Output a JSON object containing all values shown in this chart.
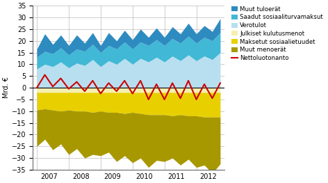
{
  "ylabel": "Mrd. €",
  "ylim": [
    -35,
    35
  ],
  "yticks": [
    -35,
    -30,
    -25,
    -20,
    -15,
    -10,
    -5,
    0,
    5,
    10,
    15,
    20,
    25,
    30,
    35
  ],
  "x_labels": [
    "2007",
    "2008",
    "2009",
    "2010",
    "2011",
    "2012"
  ],
  "colors_positive": [
    "#2e8bc0",
    "#41b8d5",
    "#b8dff0"
  ],
  "colors_negative": [
    "#f5f0b0",
    "#e8d000",
    "#a89800"
  ],
  "line_color": "#cc0000",
  "background_color": "#ffffff",
  "grid_color": "#bbbbbb",
  "verotulot": [
    8.0,
    10.0,
    9.0,
    11.0,
    8.5,
    10.5,
    9.5,
    12.0,
    9.0,
    11.5,
    10.0,
    12.5,
    10.0,
    12.5,
    11.0,
    13.0,
    11.0,
    13.5,
    11.5,
    14.0,
    11.5,
    13.5,
    12.0,
    15.0
  ],
  "saadut_sos": [
    5.0,
    5.5,
    5.5,
    6.0,
    5.5,
    6.0,
    6.0,
    6.5,
    6.0,
    6.5,
    6.5,
    7.0,
    6.5,
    7.0,
    7.0,
    7.5,
    7.0,
    7.5,
    7.5,
    8.0,
    7.5,
    8.0,
    8.0,
    8.5
  ],
  "muut_tuloerat": [
    3.5,
    7.5,
    4.0,
    5.5,
    4.0,
    6.0,
    3.5,
    5.0,
    3.0,
    5.5,
    3.5,
    5.0,
    4.0,
    5.5,
    3.5,
    5.0,
    3.5,
    5.0,
    4.0,
    5.5,
    4.0,
    5.0,
    4.0,
    6.0
  ],
  "julkiset": [
    -2.0,
    -2.0,
    -2.0,
    -2.0,
    -2.0,
    -2.0,
    -2.0,
    -2.0,
    -2.0,
    -2.0,
    -2.0,
    -2.0,
    -2.0,
    -2.0,
    -2.0,
    -2.0,
    -2.0,
    -2.0,
    -2.0,
    -2.0,
    -2.0,
    -2.0,
    -2.0,
    -2.0
  ],
  "maksetut_sos": [
    -7.5,
    -7.0,
    -7.5,
    -8.0,
    -7.5,
    -8.0,
    -8.0,
    -8.5,
    -8.0,
    -8.5,
    -8.5,
    -9.0,
    -8.5,
    -9.0,
    -9.5,
    -9.5,
    -9.5,
    -10.0,
    -9.5,
    -10.0,
    -10.0,
    -10.5,
    -10.5,
    -10.5
  ],
  "muut_menot": [
    -15.5,
    -13.0,
    -17.0,
    -14.0,
    -19.0,
    -16.0,
    -20.0,
    -18.0,
    -19.0,
    -17.0,
    -21.0,
    -18.0,
    -21.5,
    -19.0,
    -22.5,
    -19.5,
    -20.0,
    -18.0,
    -21.5,
    -18.5,
    -22.0,
    -20.5,
    -24.0,
    -20.0
  ],
  "nettoluotonanto": [
    0.0,
    5.5,
    0.5,
    4.0,
    -0.5,
    2.5,
    -1.5,
    3.0,
    -2.5,
    2.0,
    -1.5,
    3.0,
    -2.5,
    3.0,
    -5.0,
    1.5,
    -5.0,
    2.0,
    -4.5,
    3.0,
    -5.0,
    1.5,
    -4.5,
    2.0
  ]
}
